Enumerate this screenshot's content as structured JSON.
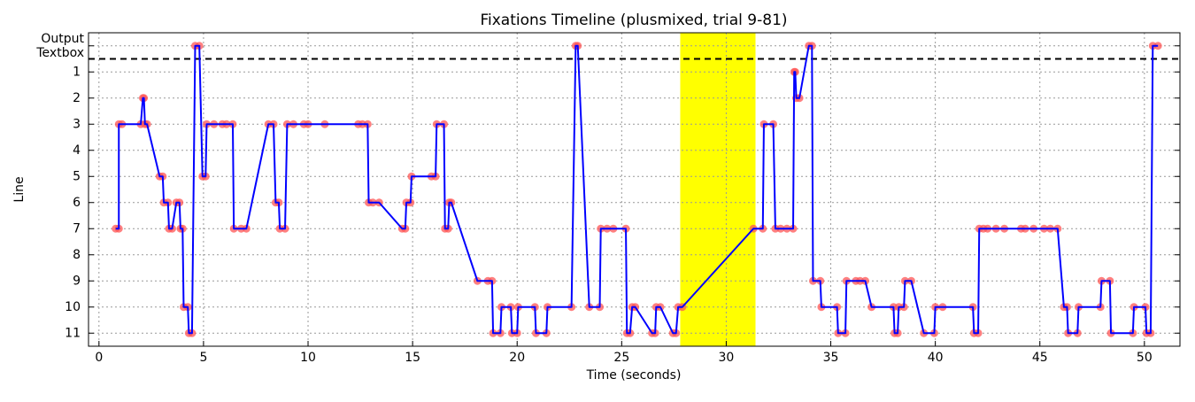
{
  "chart_data": {
    "type": "line",
    "title": "Fixations Timeline (plusmixed, trial 9-81)",
    "x_label": "Time (seconds)",
    "y_label": "Line",
    "xlim": [
      -0.5,
      51.7
    ],
    "xticks": [
      0,
      5,
      10,
      15,
      20,
      25,
      30,
      35,
      40,
      45,
      50
    ],
    "ylim": [
      11.5,
      -0.5
    ],
    "yticks": [
      {
        "value": 0,
        "label": "Output Textbox"
      },
      1,
      2,
      3,
      4,
      5,
      6,
      7,
      8,
      9,
      10,
      11
    ],
    "grid": true,
    "color": "#0000ff",
    "marker_color": "#ff5555",
    "highlight": [
      27.8,
      31.4
    ],
    "highlight_color": "#ffff00",
    "hline": 0.5,
    "x": [
      0.8,
      0.95,
      0.95,
      1.1,
      2.0,
      2.1,
      2.15,
      2.2,
      2.3,
      2.9,
      3.05,
      3.1,
      3.3,
      3.35,
      3.5,
      3.7,
      3.85,
      3.9,
      4.0,
      4.05,
      4.25,
      4.3,
      4.45,
      4.6,
      4.8,
      4.95,
      5.1,
      5.15,
      5.5,
      5.9,
      6.1,
      6.4,
      6.45,
      6.8,
      7.05,
      8.1,
      8.35,
      8.45,
      8.6,
      8.65,
      8.9,
      9.0,
      9.3,
      9.8,
      10.0,
      10.8,
      12.4,
      12.6,
      12.85,
      12.9,
      13.1,
      13.4,
      14.5,
      14.65,
      14.7,
      14.9,
      14.95,
      15.9,
      16.1,
      16.15,
      16.5,
      16.55,
      16.7,
      16.75,
      16.85,
      18.1,
      18.6,
      18.8,
      18.85,
      19.2,
      19.25,
      19.7,
      19.75,
      20.0,
      20.05,
      20.85,
      20.9,
      21.4,
      21.45,
      22.6,
      22.8,
      22.9,
      23.45,
      23.95,
      24.0,
      24.3,
      24.6,
      25.2,
      25.25,
      25.4,
      25.5,
      25.65,
      26.45,
      26.6,
      26.65,
      26.85,
      27.45,
      27.6,
      27.7,
      27.9,
      31.3,
      31.75,
      31.8,
      32.25,
      32.35,
      32.6,
      32.9,
      33.2,
      33.25,
      33.3,
      33.35,
      33.5,
      33.95,
      34.1,
      34.15,
      34.5,
      34.55,
      35.3,
      35.35,
      35.7,
      35.75,
      36.2,
      36.4,
      36.65,
      36.95,
      38.0,
      38.05,
      38.2,
      38.25,
      38.5,
      38.55,
      38.85,
      39.45,
      39.95,
      40.0,
      40.35,
      41.8,
      41.85,
      42.05,
      42.1,
      42.3,
      42.5,
      42.9,
      43.3,
      44.1,
      44.3,
      44.7,
      45.2,
      45.5,
      45.85,
      46.15,
      46.3,
      46.35,
      46.8,
      46.85,
      47.9,
      47.95,
      48.35,
      48.4,
      49.45,
      49.5,
      50.05,
      50.1,
      50.3,
      50.4,
      50.65
    ],
    "values": [
      7,
      7,
      3,
      3,
      3,
      2,
      2,
      3,
      3,
      5,
      5,
      6,
      6,
      7,
      7,
      6,
      6,
      7,
      7,
      10,
      10,
      11,
      11,
      0,
      0,
      5,
      5,
      3,
      3,
      3,
      3,
      3,
      7,
      7,
      7,
      3,
      3,
      6,
      6,
      7,
      7,
      3,
      3,
      3,
      3,
      3,
      3,
      3,
      3,
      6,
      6,
      6,
      7,
      7,
      6,
      6,
      5,
      5,
      5,
      3,
      3,
      7,
      7,
      6,
      6,
      9,
      9,
      9,
      11,
      11,
      10,
      10,
      11,
      11,
      10,
      10,
      11,
      11,
      10,
      10,
      0,
      0,
      10,
      10,
      7,
      7,
      7,
      7,
      11,
      11,
      10,
      10,
      11,
      11,
      10,
      10,
      11,
      11,
      10,
      10,
      7,
      7,
      3,
      3,
      7,
      7,
      7,
      7,
      1,
      1,
      2,
      2,
      0,
      0,
      9,
      9,
      10,
      10,
      11,
      11,
      9,
      9,
      9,
      9,
      10,
      10,
      11,
      11,
      10,
      10,
      9,
      9,
      11,
      11,
      10,
      10,
      10,
      11,
      11,
      7,
      7,
      7,
      7,
      7,
      7,
      7,
      7,
      7,
      7,
      7,
      10,
      10,
      11,
      11,
      10,
      10,
      9,
      9,
      11,
      11,
      10,
      10,
      11,
      11,
      0,
      0
    ]
  }
}
